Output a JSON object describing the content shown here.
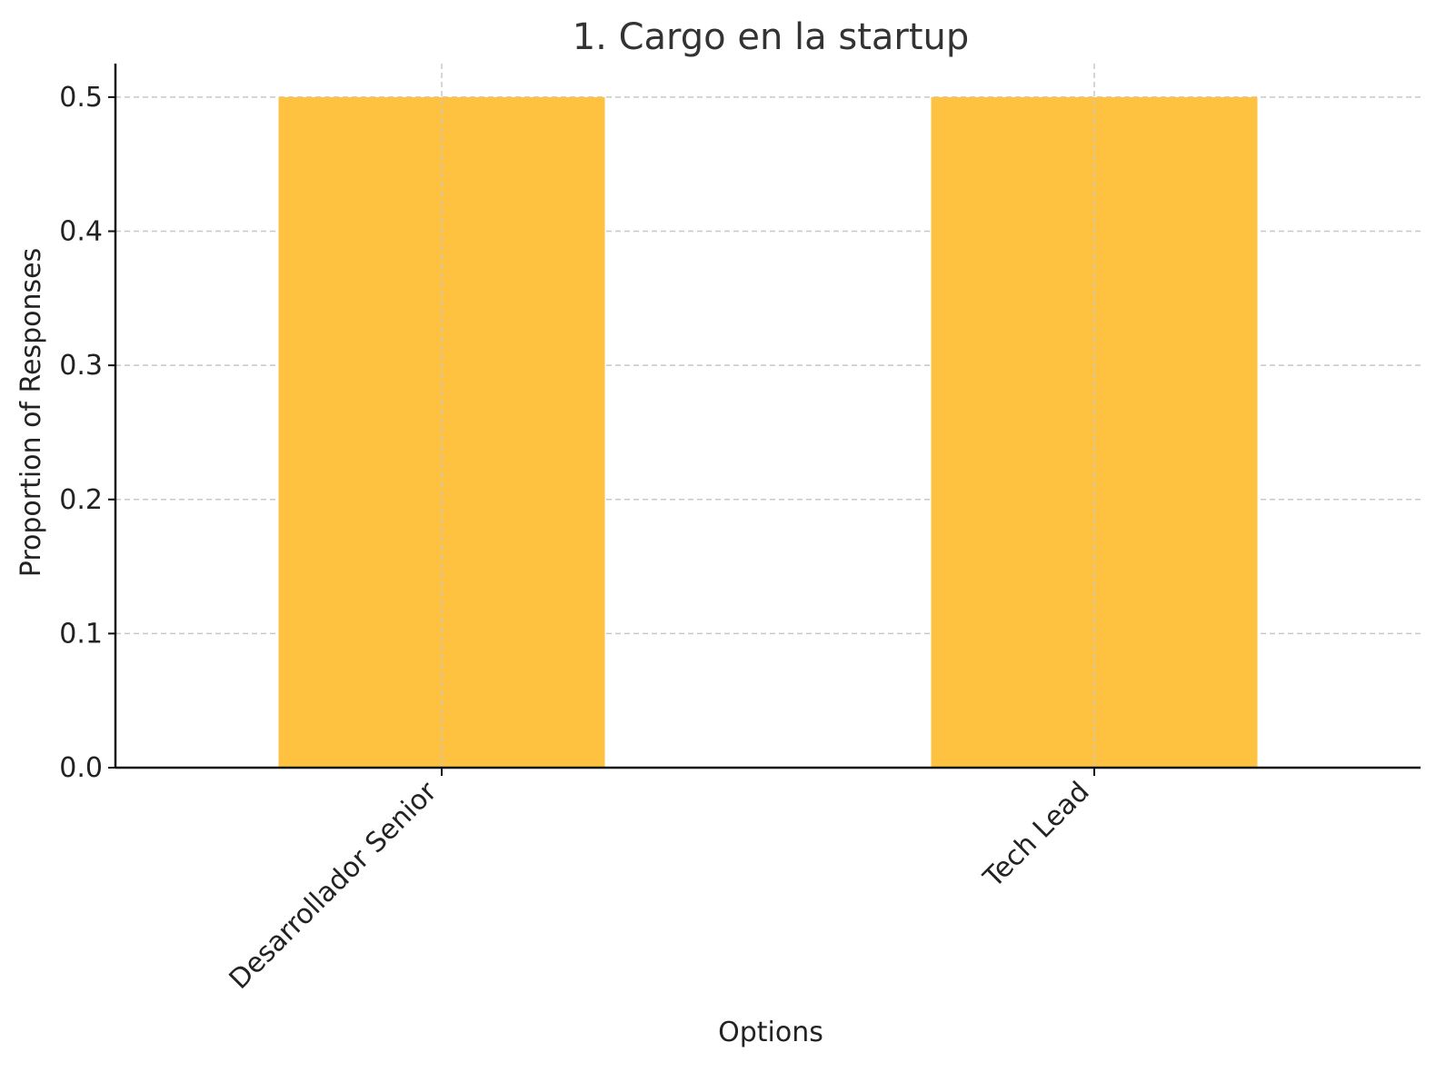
{
  "chart_data": {
    "type": "bar",
    "title": "1. Cargo en la startup",
    "xlabel": "Options",
    "ylabel": "Proportion of Responses",
    "categories": [
      "Desarrollador Senior",
      "Tech Lead"
    ],
    "values": [
      0.5,
      0.5
    ],
    "ylim": [
      0,
      0.525
    ],
    "yticks": [
      "0.0",
      "0.1",
      "0.2",
      "0.3",
      "0.4",
      "0.5"
    ],
    "grid": true,
    "bar_color": "#ffc240"
  }
}
